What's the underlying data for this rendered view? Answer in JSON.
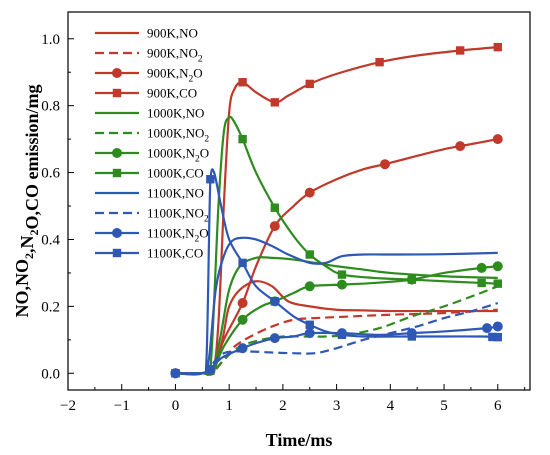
{
  "chart_data": {
    "type": "line",
    "xlabel": "Time/ms",
    "ylabel_main": "NO,NO",
    "ylabel_sub1": "2",
    "ylabel_mid1": ",N",
    "ylabel_sub2": "2",
    "ylabel_end": "O,CO emission/mg",
    "xlim": [
      -2,
      6.6
    ],
    "ylim": [
      -0.05,
      1.08
    ],
    "xticks": [
      "-2",
      "-1",
      "0",
      "1",
      "2",
      "3",
      "4",
      "5",
      "6"
    ],
    "yticks": [
      "0.0",
      "0.2",
      "0.4",
      "0.6",
      "0.8",
      "1.0"
    ],
    "legend_position": "top-left",
    "series": [
      {
        "name": "900K,NO",
        "name_base": "900K,NO",
        "name_sub": "",
        "name_tail": "",
        "color": "#c0392b",
        "dash": "solid",
        "marker": "none",
        "x": [
          0,
          0.5,
          0.7,
          0.8,
          0.9,
          1.0,
          1.2,
          1.5,
          1.8,
          2.1,
          2.5,
          3.0,
          3.5,
          4.0,
          5.0,
          6.0
        ],
        "y": [
          0,
          0,
          0.005,
          0.05,
          0.12,
          0.2,
          0.25,
          0.275,
          0.26,
          0.215,
          0.2,
          0.19,
          0.188,
          0.186,
          0.186,
          0.186
        ]
      },
      {
        "name": "900K,NO2",
        "name_base": "900K,NO",
        "name_sub": "2",
        "name_tail": "",
        "color": "#c0392b",
        "dash": "dash",
        "marker": "none",
        "x": [
          0,
          0.5,
          0.7,
          0.9,
          1.1,
          1.4,
          1.8,
          2.2,
          2.6,
          3.0,
          4.0,
          5.0,
          6.0
        ],
        "y": [
          0,
          0,
          0.005,
          0.04,
          0.08,
          0.11,
          0.14,
          0.16,
          0.165,
          0.168,
          0.175,
          0.18,
          0.19
        ]
      },
      {
        "name": "900K,N2O",
        "name_base": "900K,N",
        "name_sub": "2",
        "name_tail": "O",
        "color": "#c0392b",
        "dash": "solid",
        "marker": "circle",
        "x": [
          0,
          0.5,
          0.7,
          0.9,
          1.25,
          1.5,
          1.85,
          2.2,
          2.5,
          3.0,
          3.5,
          3.9,
          4.5,
          5.0,
          5.5,
          6.0
        ],
        "y": [
          0,
          0,
          0.01,
          0.1,
          0.21,
          0.32,
          0.44,
          0.5,
          0.54,
          0.58,
          0.61,
          0.625,
          0.65,
          0.67,
          0.685,
          0.7
        ],
        "markers_x": [
          0,
          0.65,
          1.25,
          1.85,
          2.5,
          3.9,
          5.3,
          6.0
        ]
      },
      {
        "name": "900K,CO",
        "name_base": "900K,CO",
        "name_sub": "",
        "name_tail": "",
        "color": "#c0392b",
        "dash": "solid",
        "marker": "square",
        "x": [
          0,
          0.5,
          0.7,
          0.8,
          0.9,
          1.0,
          1.1,
          1.25,
          1.5,
          1.85,
          2.1,
          2.5,
          3.0,
          3.8,
          4.5,
          5.3,
          6.0
        ],
        "y": [
          0,
          0,
          0.01,
          0.15,
          0.5,
          0.78,
          0.85,
          0.87,
          0.84,
          0.81,
          0.83,
          0.865,
          0.895,
          0.93,
          0.95,
          0.965,
          0.975
        ],
        "markers_x": [
          0,
          0.65,
          1.25,
          1.85,
          2.5,
          3.8,
          5.3,
          6.0
        ]
      },
      {
        "name": "1000K,NO",
        "name_base": "1000K,NO",
        "name_sub": "",
        "name_tail": "",
        "color": "#2e8b1e",
        "dash": "solid",
        "marker": "none",
        "x": [
          0,
          0.5,
          0.7,
          0.85,
          1.0,
          1.2,
          1.5,
          1.8,
          2.2,
          2.6,
          3.0,
          3.5,
          4.0,
          5.0,
          6.0
        ],
        "y": [
          0,
          0,
          0.01,
          0.12,
          0.25,
          0.32,
          0.345,
          0.345,
          0.34,
          0.33,
          0.32,
          0.31,
          0.3,
          0.29,
          0.285
        ]
      },
      {
        "name": "1000K,NO2",
        "name_base": "1000K,NO",
        "name_sub": "2",
        "name_tail": "",
        "color": "#2e8b1e",
        "dash": "dash",
        "marker": "none",
        "x": [
          0,
          0.5,
          0.7,
          0.9,
          1.2,
          1.6,
          2.0,
          2.4,
          2.8,
          3.2,
          3.8,
          4.4,
          5.0,
          5.6,
          6.0
        ],
        "y": [
          0,
          0,
          0.005,
          0.04,
          0.08,
          0.1,
          0.11,
          0.11,
          0.11,
          0.115,
          0.135,
          0.17,
          0.2,
          0.235,
          0.26
        ]
      },
      {
        "name": "1000K,N2O",
        "name_base": "1000K,N",
        "name_sub": "2",
        "name_tail": "O",
        "color": "#2e8b1e",
        "dash": "solid",
        "marker": "circle",
        "x": [
          0,
          0.5,
          0.7,
          0.9,
          1.25,
          1.6,
          1.85,
          2.2,
          2.5,
          3.1,
          3.7,
          4.4,
          5.0,
          5.7,
          6.0
        ],
        "y": [
          0,
          0,
          0.01,
          0.08,
          0.16,
          0.2,
          0.215,
          0.24,
          0.26,
          0.265,
          0.27,
          0.28,
          0.3,
          0.315,
          0.32
        ],
        "markers_x": [
          0,
          0.65,
          1.25,
          1.85,
          2.5,
          3.1,
          4.4,
          5.7,
          6.0
        ]
      },
      {
        "name": "1000K,CO",
        "name_base": "1000K,CO",
        "name_sub": "",
        "name_tail": "",
        "color": "#2e8b1e",
        "dash": "solid",
        "marker": "square",
        "x": [
          0,
          0.5,
          0.65,
          0.8,
          0.9,
          1.0,
          1.1,
          1.25,
          1.5,
          1.85,
          2.2,
          2.5,
          2.8,
          3.1,
          3.7,
          4.4,
          5.0,
          5.7,
          6.0
        ],
        "y": [
          0,
          0,
          0.01,
          0.5,
          0.72,
          0.765,
          0.75,
          0.7,
          0.6,
          0.495,
          0.41,
          0.355,
          0.32,
          0.295,
          0.285,
          0.28,
          0.275,
          0.27,
          0.268
        ],
        "markers_x": [
          0,
          0.65,
          1.25,
          1.85,
          2.5,
          3.1,
          4.4,
          5.7,
          6.0
        ]
      },
      {
        "name": "1100K,NO",
        "name_base": "1100K,NO",
        "name_sub": "",
        "name_tail": "",
        "color": "#2f58b5",
        "dash": "solid",
        "marker": "none",
        "x": [
          0,
          0.5,
          0.62,
          0.75,
          0.9,
          1.05,
          1.25,
          1.5,
          1.8,
          2.1,
          2.5,
          2.8,
          3.1,
          3.5,
          4.0,
          5.0,
          6.0
        ],
        "y": [
          0,
          0,
          0.04,
          0.25,
          0.35,
          0.395,
          0.405,
          0.4,
          0.38,
          0.355,
          0.33,
          0.33,
          0.35,
          0.355,
          0.355,
          0.356,
          0.36
        ]
      },
      {
        "name": "1100K,NO2",
        "name_base": "1100K,NO",
        "name_sub": "2",
        "name_tail": "",
        "color": "#2f58b5",
        "dash": "dash",
        "marker": "none",
        "x": [
          0,
          0.5,
          0.62,
          0.75,
          0.9,
          1.1,
          1.4,
          1.8,
          2.2,
          2.6,
          3.0,
          3.5,
          4.0,
          4.5,
          5.0,
          5.5,
          6.0
        ],
        "y": [
          0,
          0,
          0.01,
          0.04,
          0.06,
          0.065,
          0.065,
          0.062,
          0.06,
          0.06,
          0.075,
          0.1,
          0.12,
          0.14,
          0.165,
          0.185,
          0.21
        ]
      },
      {
        "name": "1100K,N2O",
        "name_base": "1100K,N",
        "name_sub": "2",
        "name_tail": "O",
        "color": "#2f58b5",
        "dash": "solid",
        "marker": "circle",
        "x": [
          0,
          0.5,
          0.62,
          0.75,
          0.9,
          1.25,
          1.5,
          1.85,
          2.2,
          2.5,
          3.1,
          3.8,
          4.4,
          5.0,
          5.8,
          6.0
        ],
        "y": [
          0,
          0,
          0.005,
          0.03,
          0.05,
          0.075,
          0.09,
          0.105,
          0.11,
          0.12,
          0.12,
          0.115,
          0.12,
          0.125,
          0.135,
          0.14
        ],
        "markers_x": [
          0,
          0.65,
          1.25,
          1.85,
          2.5,
          3.1,
          4.4,
          5.8,
          6.0
        ]
      },
      {
        "name": "1100K,CO",
        "name_base": "1100K,CO",
        "name_sub": "",
        "name_tail": "",
        "color": "#2f58b5",
        "dash": "solid",
        "marker": "square",
        "x": [
          0,
          0.5,
          0.58,
          0.65,
          0.72,
          0.85,
          1.0,
          1.25,
          1.5,
          1.85,
          2.2,
          2.5,
          2.8,
          3.1,
          3.5,
          4.4,
          5.0,
          5.7,
          6.0
        ],
        "y": [
          0,
          0,
          0.05,
          0.58,
          0.6,
          0.5,
          0.4,
          0.33,
          0.26,
          0.215,
          0.17,
          0.145,
          0.125,
          0.115,
          0.11,
          0.11,
          0.11,
          0.11,
          0.108
        ],
        "markers_x": [
          0,
          0.65,
          1.25,
          1.85,
          2.5,
          3.1,
          4.4,
          5.9,
          6.0
        ]
      }
    ]
  }
}
